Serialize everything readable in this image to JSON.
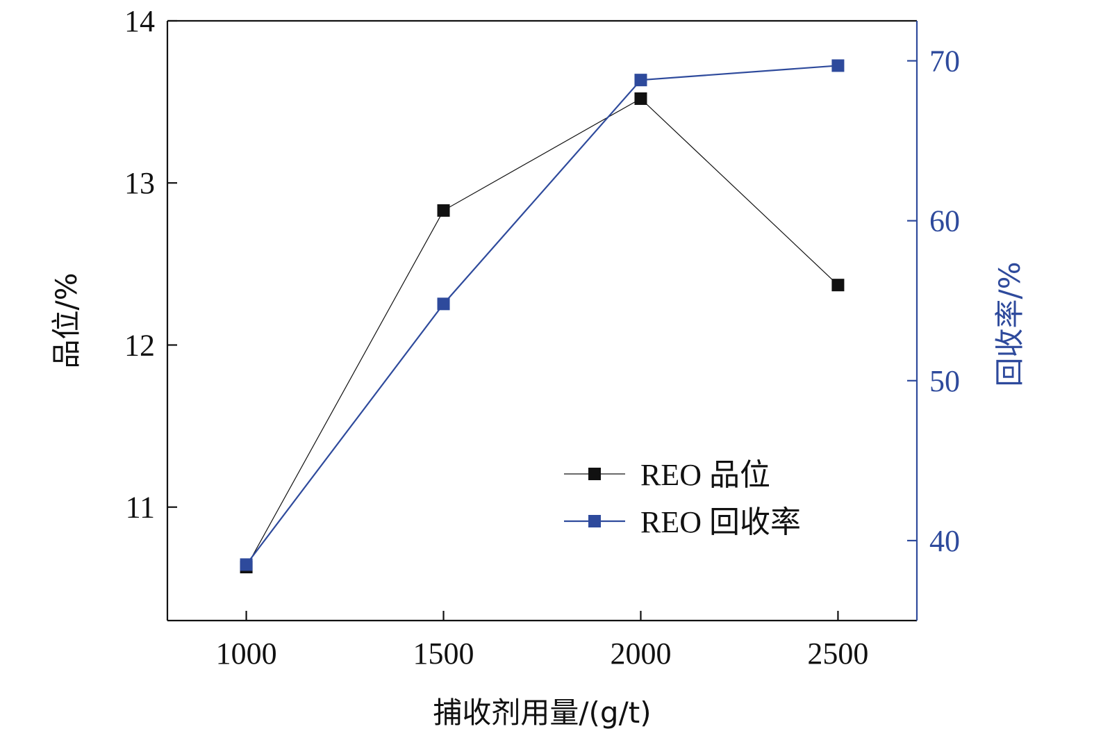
{
  "colors": {
    "left_series": "#111111",
    "right_series": "#2e4a9c",
    "axis": "#111111"
  },
  "chart_data": {
    "type": "line",
    "x": [
      1000,
      1500,
      2000,
      2500
    ],
    "x_ticks": [
      "1000",
      "1500",
      "2000",
      "2500"
    ],
    "xlabel": "捕收剂用量/(g/t)",
    "xlim": [
      800,
      2700
    ],
    "y_left": {
      "label": "品位/%",
      "ticks": [
        "11",
        "12",
        "13",
        "14"
      ],
      "ylim": [
        10.3,
        14.0
      ]
    },
    "y_right": {
      "label": "回收率/%",
      "ticks": [
        "40",
        "50",
        "60",
        "70"
      ],
      "ylim": [
        35.0,
        72.5
      ]
    },
    "series": [
      {
        "name": "REO 品位",
        "axis": "left",
        "values": [
          10.63,
          12.83,
          13.52,
          12.37
        ]
      },
      {
        "name": "REO 回收率",
        "axis": "right",
        "values": [
          38.5,
          54.8,
          68.8,
          69.7
        ]
      }
    ],
    "grid": false,
    "legend_position": "bottom-right"
  }
}
